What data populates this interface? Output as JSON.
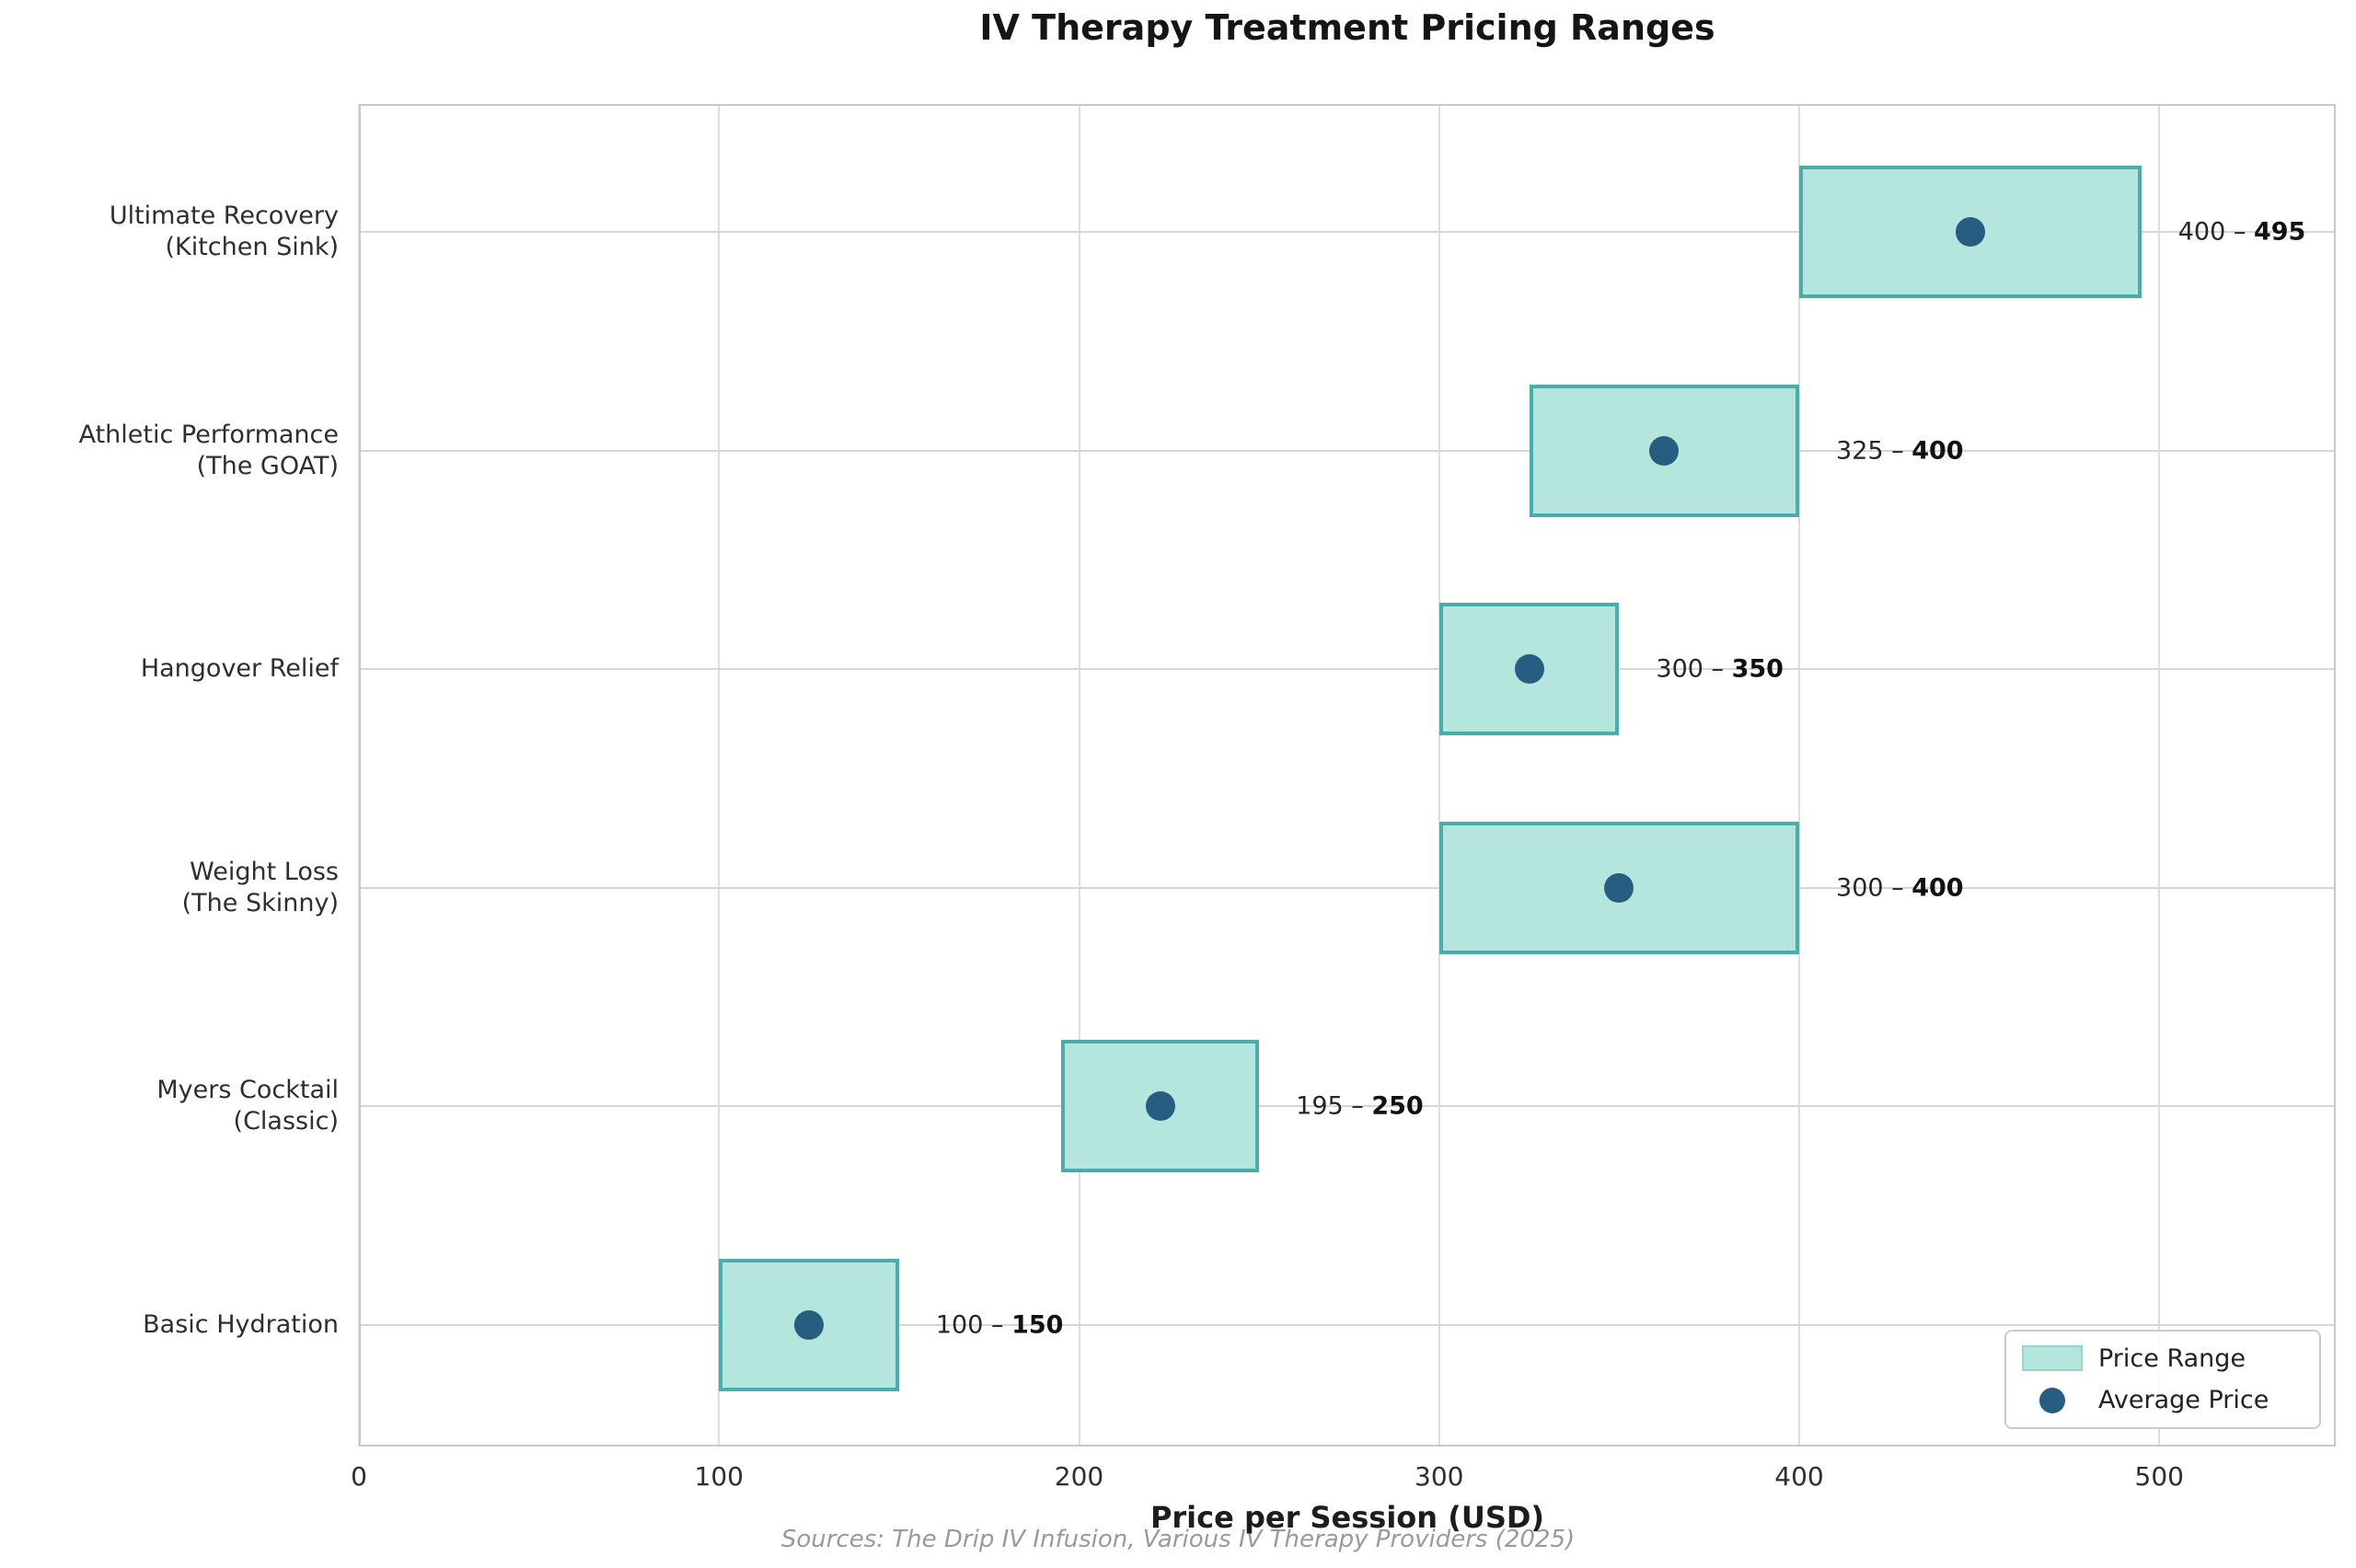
{
  "title": "IV Therapy Treatment Pricing Ranges",
  "source_note": "Sources: The Drip IV Infusion, Various IV Therapy Providers (2025)",
  "legend": {
    "items": [
      {
        "swatch": "range-box",
        "label": "Price Range"
      },
      {
        "swatch": "average-dot",
        "label": "Average Price"
      }
    ]
  },
  "chart_data": {
    "type": "bar",
    "orientation": "horizontal",
    "title": "IV Therapy Treatment Pricing Ranges",
    "xlabel": "Price per Session (USD)",
    "ylabel": "",
    "xlim": [
      0,
      549
    ],
    "xticks": [
      0,
      100,
      200,
      300,
      400,
      500
    ],
    "grid": true,
    "legend_position": "lower right",
    "colors": {
      "bar_fill": "#b4e6dd",
      "bar_edge": "#4aacab",
      "average_dot": "#265d80"
    },
    "annotation_separator": "–",
    "rows": [
      {
        "category": "Ultimate Recovery\n(Kitchen Sink)",
        "min": 400,
        "max": 495,
        "average": 447.5,
        "label_min": "400",
        "label_max": "495"
      },
      {
        "category": "Athletic Performance\n(The GOAT)",
        "min": 325,
        "max": 400,
        "average": 362.5,
        "label_min": "325",
        "label_max": "400"
      },
      {
        "category": "Hangover Relief",
        "min": 300,
        "max": 350,
        "average": 325,
        "label_min": "300",
        "label_max": "350"
      },
      {
        "category": "Weight Loss\n(The Skinny)",
        "min": 300,
        "max": 400,
        "average": 350,
        "label_min": "300",
        "label_max": "400"
      },
      {
        "category": "Myers Cocktail\n(Classic)",
        "min": 195,
        "max": 250,
        "average": 222.5,
        "label_min": "195",
        "label_max": "250"
      },
      {
        "category": "Basic Hydration",
        "min": 100,
        "max": 150,
        "average": 125,
        "label_min": "100",
        "label_max": "150"
      }
    ]
  }
}
